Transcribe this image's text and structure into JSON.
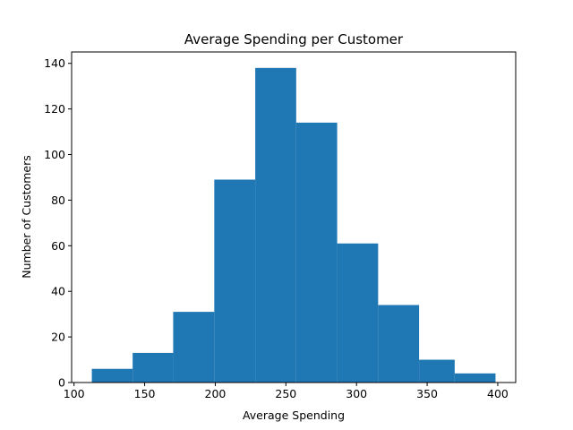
{
  "chart_data": {
    "type": "bar",
    "subtype": "histogram",
    "title": "Average Spending per Customer",
    "xlabel": "Average Spending",
    "ylabel": "Number of Customers",
    "xlim": [
      98.3,
      412.7
    ],
    "ylim": [
      0,
      145
    ],
    "xticks": [
      100,
      150,
      200,
      250,
      300,
      350,
      400
    ],
    "yticks": [
      0,
      20,
      40,
      60,
      80,
      100,
      120,
      140
    ],
    "bin_edges": [
      112.6,
      141.5,
      170.2,
      199.3,
      228.3,
      257.3,
      286.3,
      315.3,
      344.3,
      369.5,
      398.4
    ],
    "counts": [
      6,
      13,
      31,
      89,
      138,
      114,
      61,
      34,
      10,
      4
    ],
    "grid": false,
    "colors": {
      "bar": "#1f77b4"
    }
  }
}
